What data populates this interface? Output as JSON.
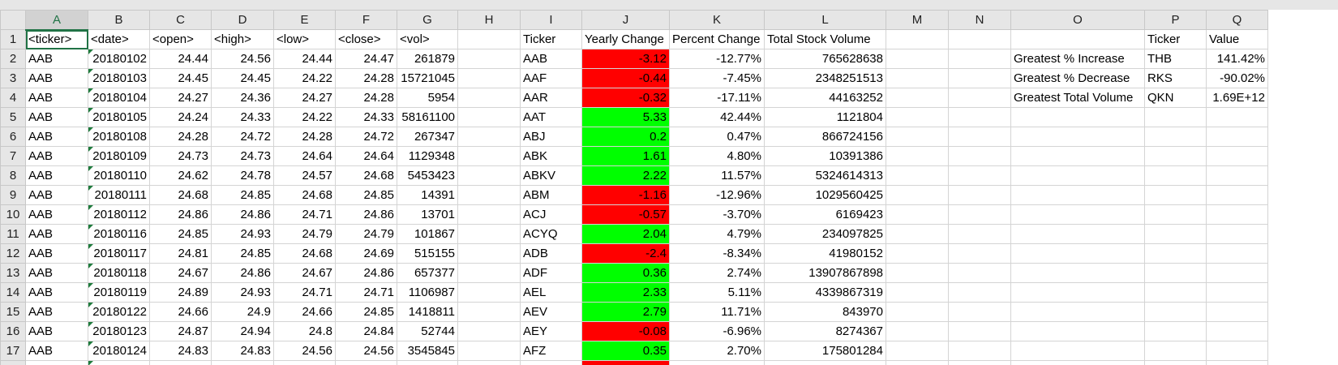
{
  "columns": [
    "A",
    "B",
    "C",
    "D",
    "E",
    "F",
    "G",
    "H",
    "I",
    "J",
    "K",
    "L",
    "M",
    "N",
    "O",
    "P",
    "Q"
  ],
  "rows": [
    [
      "<ticker>",
      "<date>",
      "<open>",
      "<high>",
      "<low>",
      "<close>",
      "<vol>",
      "",
      "Ticker",
      "Yearly Change",
      "Percent Change",
      "Total Stock Volume",
      "",
      "",
      "",
      "Ticker",
      "Value"
    ],
    [
      "AAB",
      "20180102",
      "24.44",
      "24.56",
      "24.44",
      "24.47",
      "261879",
      "",
      "AAB",
      "-3.12",
      "-12.77%",
      "765628638",
      "",
      "",
      "Greatest % Increase",
      "THB",
      "141.42%"
    ],
    [
      "AAB",
      "20180103",
      "24.45",
      "24.45",
      "24.22",
      "24.28",
      "15721045",
      "",
      "AAF",
      "-0.44",
      "-7.45%",
      "2348251513",
      "",
      "",
      "Greatest % Decrease",
      "RKS",
      "-90.02%"
    ],
    [
      "AAB",
      "20180104",
      "24.27",
      "24.36",
      "24.27",
      "24.28",
      "5954",
      "",
      "AAR",
      "-0.32",
      "-17.11%",
      "44163252",
      "",
      "",
      "Greatest Total Volume",
      "QKN",
      "1.69E+12"
    ],
    [
      "AAB",
      "20180105",
      "24.24",
      "24.33",
      "24.22",
      "24.33",
      "58161100",
      "",
      "AAT",
      "5.33",
      "42.44%",
      "1121804",
      "",
      "",
      "",
      "",
      ""
    ],
    [
      "AAB",
      "20180108",
      "24.28",
      "24.72",
      "24.28",
      "24.72",
      "267347",
      "",
      "ABJ",
      "0.2",
      "0.47%",
      "866724156",
      "",
      "",
      "",
      "",
      ""
    ],
    [
      "AAB",
      "20180109",
      "24.73",
      "24.73",
      "24.64",
      "24.64",
      "1129348",
      "",
      "ABK",
      "1.61",
      "4.80%",
      "10391386",
      "",
      "",
      "",
      "",
      ""
    ],
    [
      "AAB",
      "20180110",
      "24.62",
      "24.78",
      "24.57",
      "24.68",
      "5453423",
      "",
      "ABKV",
      "2.22",
      "11.57%",
      "5324614313",
      "",
      "",
      "",
      "",
      ""
    ],
    [
      "AAB",
      "20180111",
      "24.68",
      "24.85",
      "24.68",
      "24.85",
      "14391",
      "",
      "ABM",
      "-1.16",
      "-12.96%",
      "1029560425",
      "",
      "",
      "",
      "",
      ""
    ],
    [
      "AAB",
      "20180112",
      "24.86",
      "24.86",
      "24.71",
      "24.86",
      "13701",
      "",
      "ACJ",
      "-0.57",
      "-3.70%",
      "6169423",
      "",
      "",
      "",
      "",
      ""
    ],
    [
      "AAB",
      "20180116",
      "24.85",
      "24.93",
      "24.79",
      "24.79",
      "101867",
      "",
      "ACYQ",
      "2.04",
      "4.79%",
      "234097825",
      "",
      "",
      "",
      "",
      ""
    ],
    [
      "AAB",
      "20180117",
      "24.81",
      "24.85",
      "24.68",
      "24.69",
      "515155",
      "",
      "ADB",
      "-2.4",
      "-8.34%",
      "41980152",
      "",
      "",
      "",
      "",
      ""
    ],
    [
      "AAB",
      "20180118",
      "24.67",
      "24.86",
      "24.67",
      "24.86",
      "657377",
      "",
      "ADF",
      "0.36",
      "2.74%",
      "13907867898",
      "",
      "",
      "",
      "",
      ""
    ],
    [
      "AAB",
      "20180119",
      "24.89",
      "24.93",
      "24.71",
      "24.71",
      "1106987",
      "",
      "AEL",
      "2.33",
      "5.11%",
      "4339867319",
      "",
      "",
      "",
      "",
      ""
    ],
    [
      "AAB",
      "20180122",
      "24.66",
      "24.9",
      "24.66",
      "24.85",
      "1418811",
      "",
      "AEV",
      "2.79",
      "11.71%",
      "843970",
      "",
      "",
      "",
      "",
      ""
    ],
    [
      "AAB",
      "20180123",
      "24.87",
      "24.94",
      "24.8",
      "24.84",
      "52744",
      "",
      "AEY",
      "-0.08",
      "-6.96%",
      "8274367",
      "",
      "",
      "",
      "",
      ""
    ],
    [
      "AAB",
      "20180124",
      "24.83",
      "24.83",
      "24.56",
      "24.56",
      "3545845",
      "",
      "AFZ",
      "0.35",
      "2.70%",
      "175801284",
      "",
      "",
      "",
      "",
      ""
    ],
    [
      "",
      "",
      "",
      "",
      "",
      "",
      "",
      "",
      "",
      "",
      "",
      "",
      "",
      "",
      "",
      "",
      ""
    ]
  ],
  "colors": {
    "positive": "#00ff00",
    "negative": "#ff0000",
    "accent": "#217346"
  }
}
